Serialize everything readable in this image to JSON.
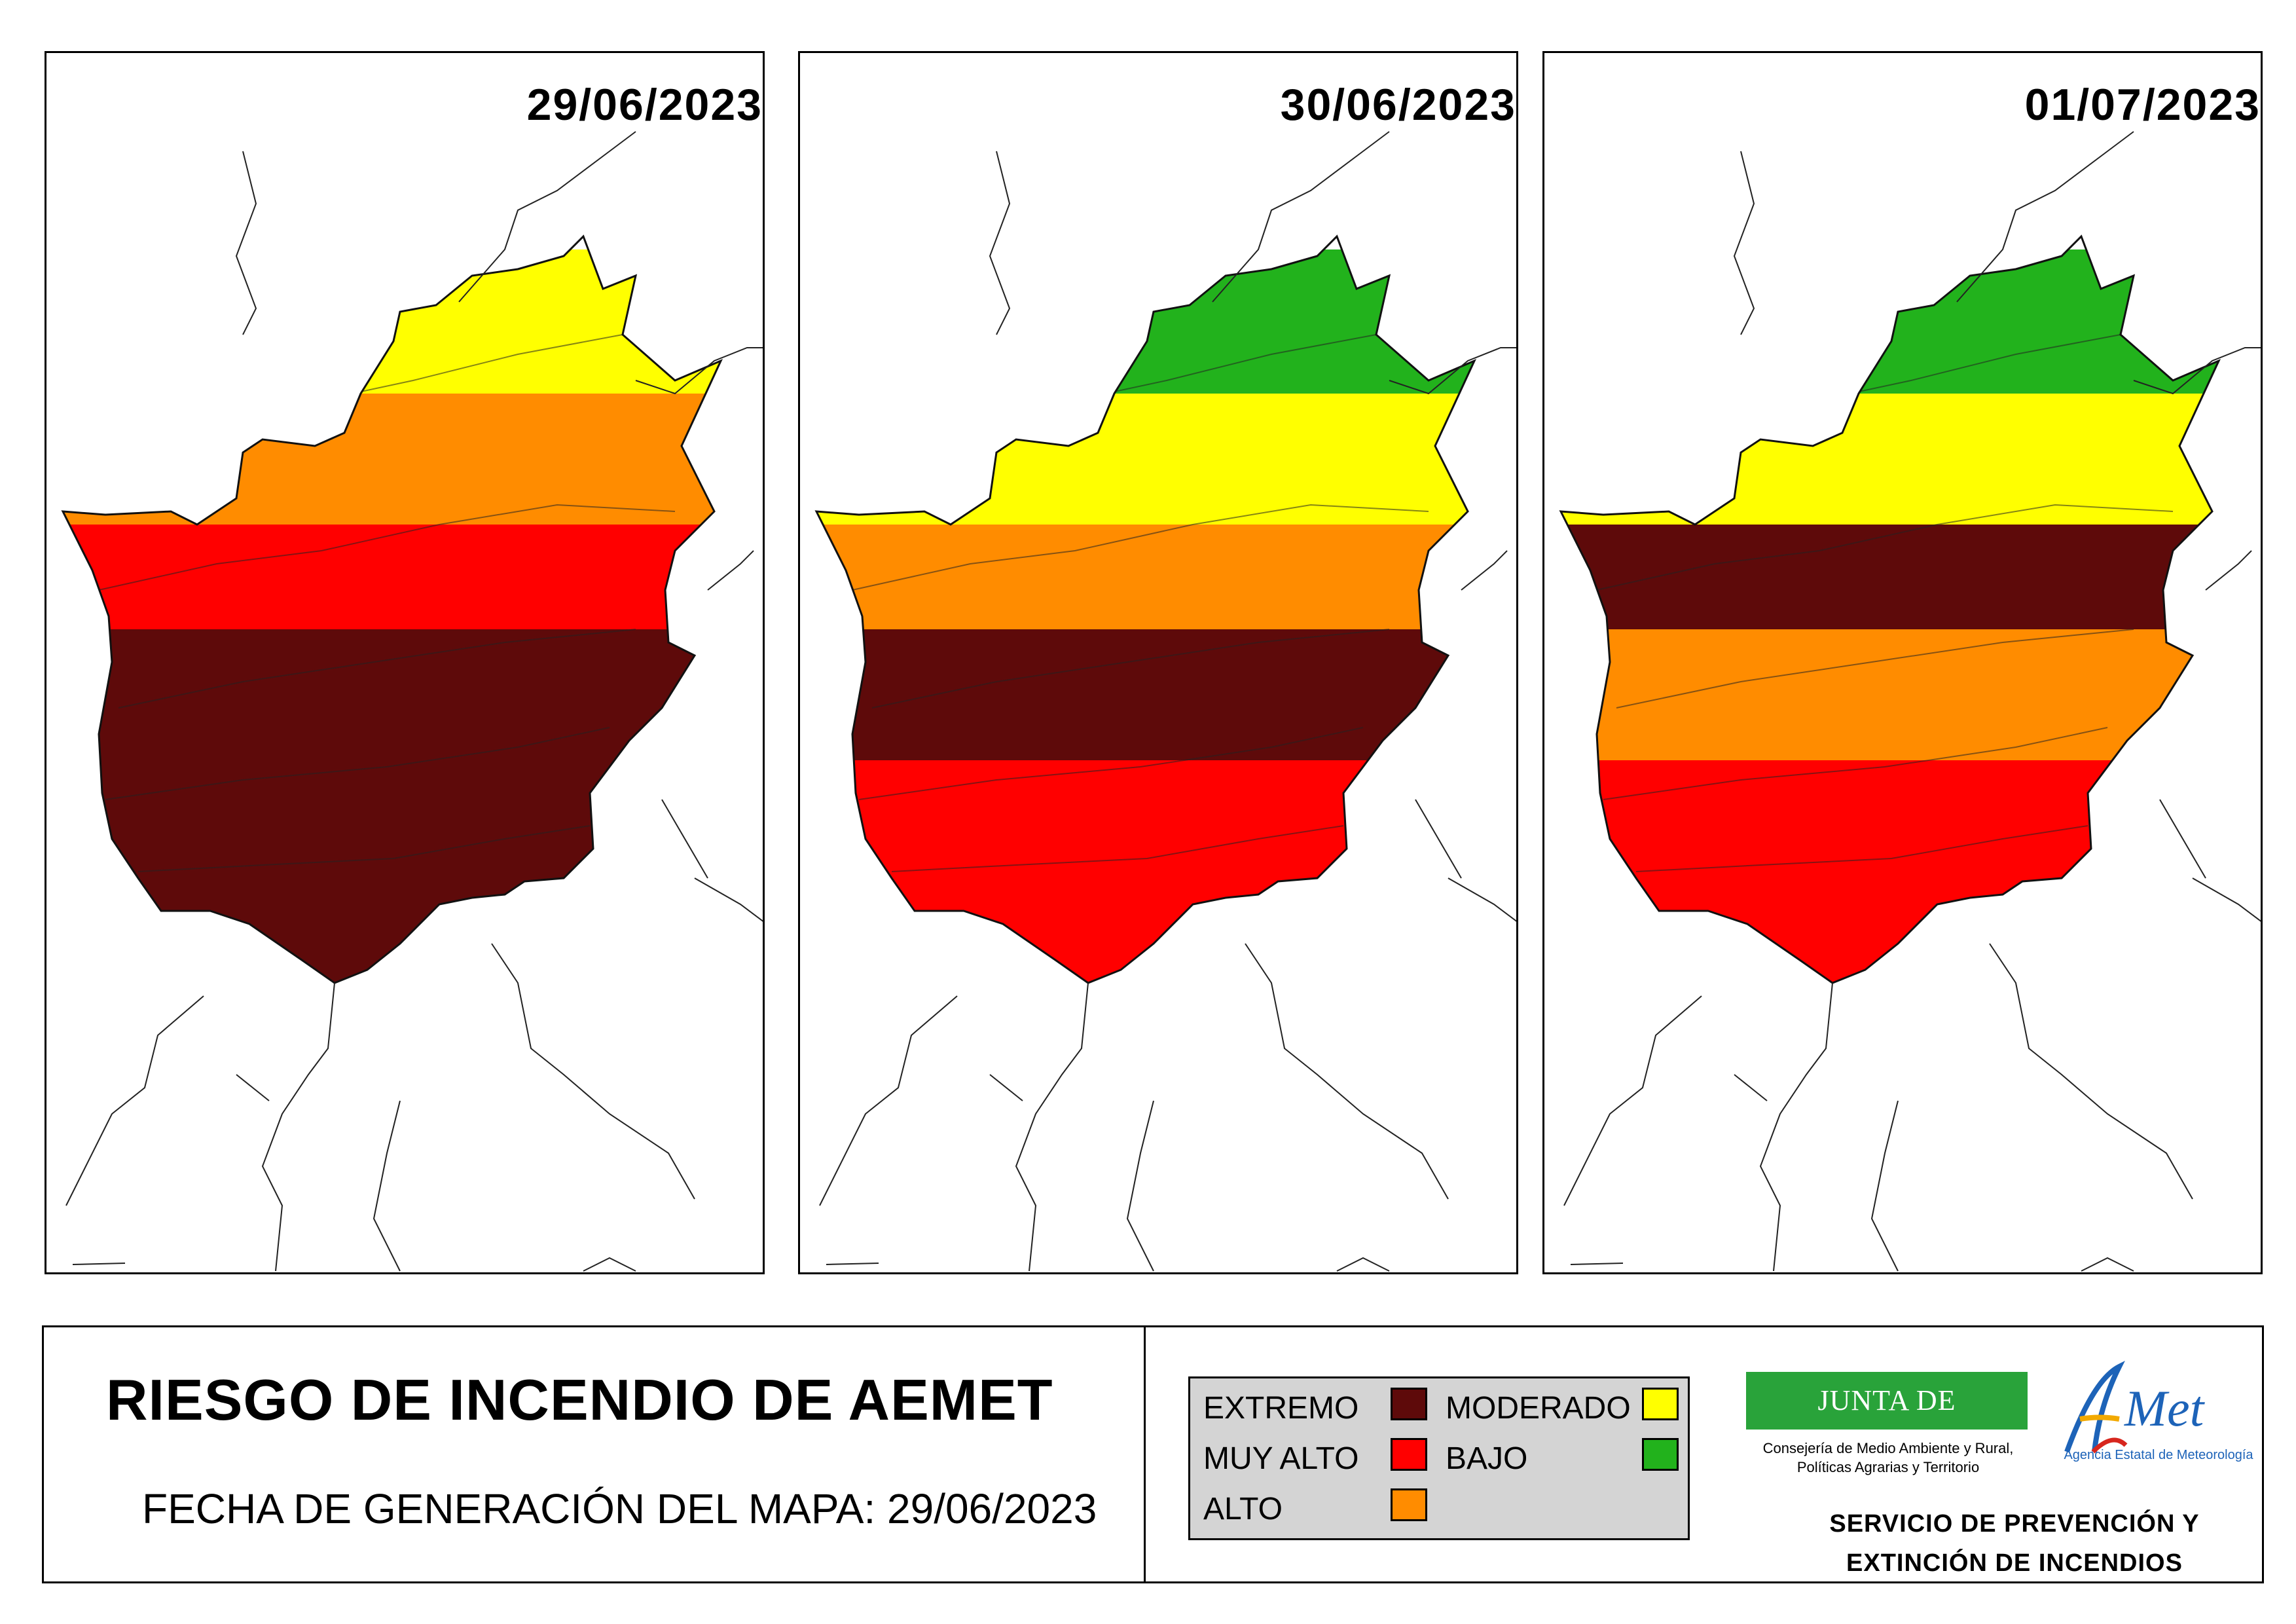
{
  "maps": [
    {
      "date": "29/06/2023",
      "palette": [
        "#5e0a0a",
        "#5e0a0a",
        "#5e0a0a",
        "#ff0000",
        "#ff8c00",
        "#ffff00"
      ]
    },
    {
      "date": "30/06/2023",
      "palette": [
        "#ff0000",
        "#ff0000",
        "#5e0a0a",
        "#ff8c00",
        "#ffff00",
        "#22b21c"
      ]
    },
    {
      "date": "01/07/2023",
      "palette": [
        "#ff0000",
        "#ff0000",
        "#ff8c00",
        "#5e0a0a",
        "#ffff00",
        "#22b21c"
      ]
    }
  ],
  "footer": {
    "title": "RIESGO DE INCENDIO DE AEMET",
    "generation_date": "FECHA DE GENERACIÓN DEL MAPA: 29/06/2023",
    "service_line1": "SERVICIO DE PREVENCIÓN Y",
    "service_line2": "EXTINCIÓN DE INCENDIOS"
  },
  "legend": {
    "items": [
      {
        "label": "EXTREMO",
        "color": "#5e0a0a"
      },
      {
        "label": "MUY ALTO",
        "color": "#ff0000"
      },
      {
        "label": "ALTO",
        "color": "#ff8c00"
      },
      {
        "label": "MODERADO",
        "color": "#ffff00"
      },
      {
        "label": "BAJO",
        "color": "#22b21c"
      }
    ]
  },
  "logos": {
    "junta_name": "JUNTA DE EXTREMADURA",
    "junta_sub1": "Consejería de Medio Ambiente y Rural,",
    "junta_sub2": "Políticas Agrarias y Territorio",
    "aemet_wordmark": "AEMet",
    "aemet_sub": "Agencia Estatal de Meteorología"
  }
}
